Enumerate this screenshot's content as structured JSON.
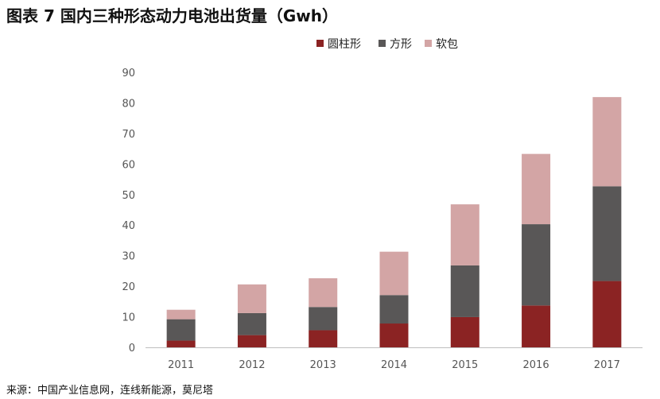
{
  "title": "图表 7 国内三种形态动力电池出货量（Gwh）",
  "source": "来源：中国产业信息网，连线新能源，莫尼塔",
  "chart_data": {
    "type": "bar",
    "stacked": true,
    "title": "图表 7 国内三种形态动力电池出货量（Gwh）",
    "xlabel": "",
    "ylabel": "",
    "ylim": [
      0,
      90
    ],
    "yticks": [
      0,
      10,
      20,
      30,
      40,
      50,
      60,
      70,
      80,
      90
    ],
    "categories": [
      "2011",
      "2012",
      "2013",
      "2014",
      "2015",
      "2016",
      "2017"
    ],
    "series": [
      {
        "name": "圆柱形",
        "color": "#8b2323",
        "values": [
          2.2,
          4.0,
          5.6,
          7.8,
          9.9,
          13.7,
          21.7
        ]
      },
      {
        "name": "方形",
        "color": "#595757",
        "values": [
          7.0,
          7.2,
          7.6,
          9.3,
          16.9,
          26.6,
          31.0
        ]
      },
      {
        "name": "软包",
        "color": "#d3a5a5",
        "values": [
          3.1,
          9.4,
          9.4,
          14.2,
          20.0,
          23.0,
          29.2
        ]
      }
    ],
    "legend_position": "top-right",
    "grid": false
  }
}
